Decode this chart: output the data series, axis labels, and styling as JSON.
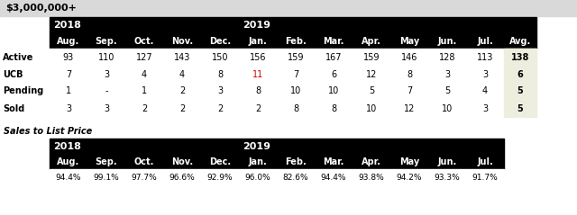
{
  "title": "$3,000,000+",
  "title_bg": "#d9d9d9",
  "header_bg": "#000000",
  "header_text_color": "#ffffff",
  "avg_col_bg": "#eeeedf",
  "all_months": [
    "Aug.",
    "Sep.",
    "Oct.",
    "Nov.",
    "Dec.",
    "Jan.",
    "Feb.",
    "Mar.",
    "Apr.",
    "May",
    "Jun.",
    "Jul."
  ],
  "row_labels": [
    "Active",
    "UCB",
    "Pending",
    "Sold"
  ],
  "data": {
    "Active": [
      93,
      110,
      127,
      143,
      150,
      156,
      159,
      167,
      159,
      146,
      128,
      113,
      138
    ],
    "UCB": [
      7,
      3,
      4,
      4,
      8,
      11,
      7,
      6,
      12,
      8,
      3,
      3,
      6
    ],
    "Pending": [
      1,
      "-",
      1,
      2,
      3,
      8,
      10,
      10,
      5,
      7,
      5,
      4,
      5
    ],
    "Sold": [
      3,
      3,
      2,
      2,
      2,
      2,
      8,
      8,
      10,
      12,
      10,
      3,
      5
    ]
  },
  "ucb_jan_color": "#cc0000",
  "sales_title": "Sales to List Price",
  "sales_data": [
    "94.4%",
    "99.1%",
    "97.7%",
    "96.6%",
    "92.9%",
    "96.0%",
    "82.6%",
    "94.4%",
    "93.8%",
    "94.2%",
    "93.3%",
    "91.7%"
  ],
  "bg_color": "#ffffff",
  "cell_bg_normal": "#ffffff",
  "fig_width": 6.4,
  "fig_height": 2.39,
  "dpi": 100
}
